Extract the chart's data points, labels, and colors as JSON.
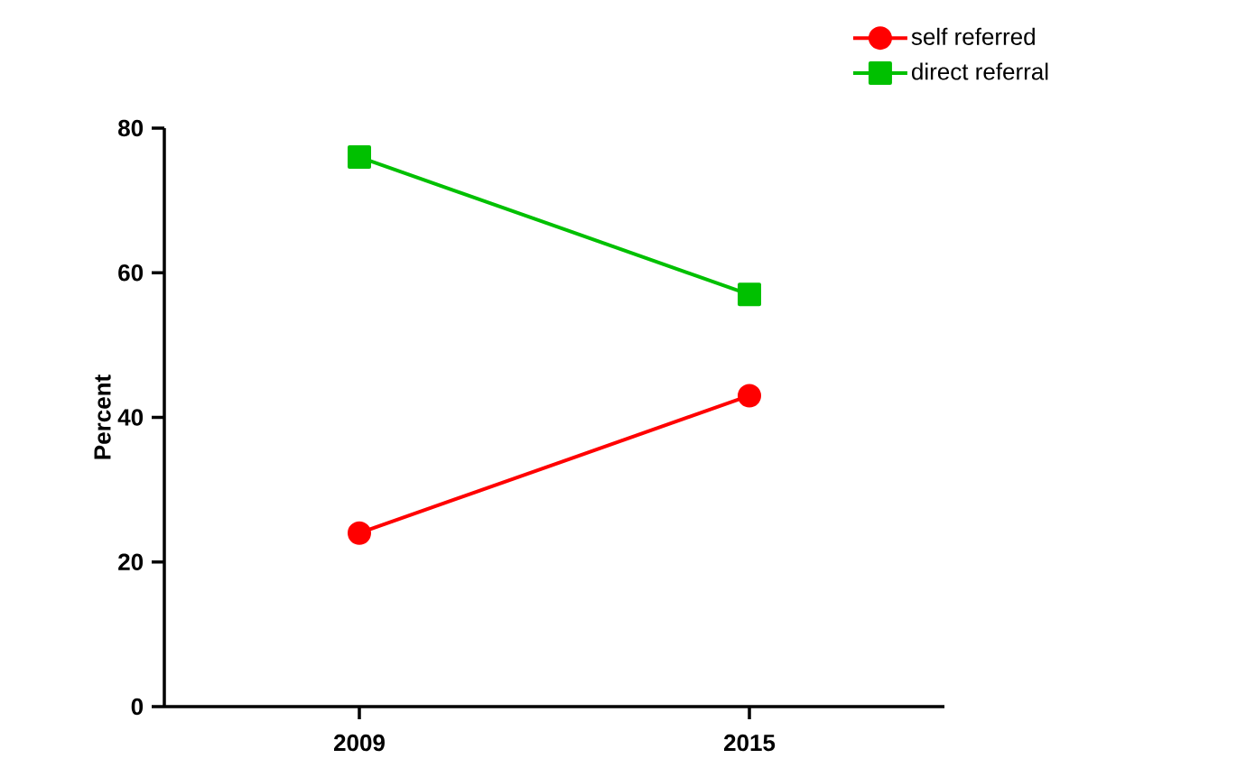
{
  "chart_data": {
    "type": "line",
    "ylabel": "Percent",
    "categories": [
      "2009",
      "2015"
    ],
    "series": [
      {
        "name": "self referred",
        "color": "#ff0000",
        "marker": "circle",
        "values": [
          24,
          43
        ]
      },
      {
        "name": "direct referral",
        "color": "#00c000",
        "marker": "square",
        "values": [
          76,
          57
        ]
      }
    ],
    "ylim": [
      0,
      80
    ],
    "yticks": [
      0,
      20,
      40,
      60,
      80
    ],
    "legend": "top right",
    "grid": false
  }
}
